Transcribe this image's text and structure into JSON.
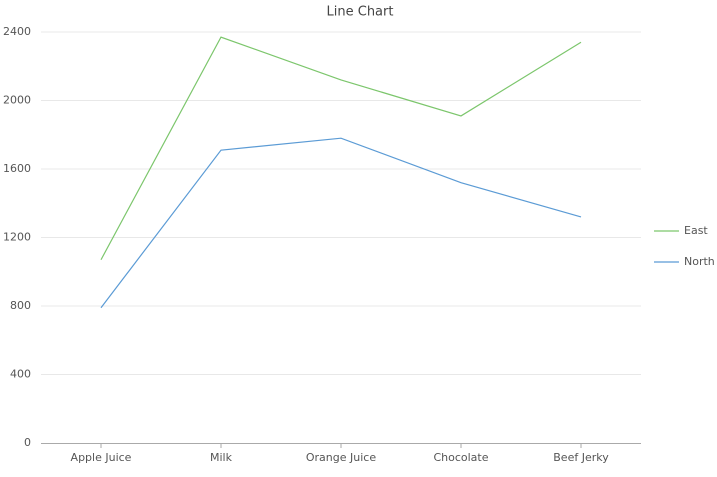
{
  "chart_data": {
    "type": "line",
    "title": "Line Chart",
    "categories": [
      "Apple Juice",
      "Milk",
      "Orange Juice",
      "Chocolate",
      "Beef Jerky"
    ],
    "series": [
      {
        "name": "East",
        "color": "#7cc66c",
        "values": [
          1070,
          2370,
          2120,
          1910,
          2340
        ]
      },
      {
        "name": "North",
        "color": "#5b9bd5",
        "values": [
          790,
          1710,
          1780,
          1520,
          1320
        ]
      }
    ],
    "ylim": [
      0,
      2400
    ],
    "yticks": [
      0,
      400,
      800,
      1200,
      1600,
      2000,
      2400
    ],
    "grid": true,
    "legend": "right"
  }
}
